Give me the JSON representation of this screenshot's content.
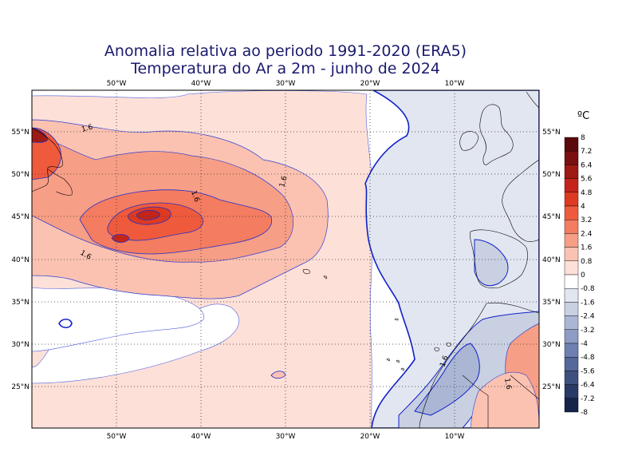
{
  "title_line1": "Anomalia relativa ao periodo 1991-2020 (ERA5)",
  "title_line2": "Temperatura do Ar a 2m - junho de 2024",
  "lon_labels": [
    "50°W",
    "40°W",
    "30°W",
    "20°W",
    "10°W"
  ],
  "lat_labels": [
    "55°N",
    "50°N",
    "45°N",
    "40°N",
    "35°N",
    "30°N",
    "25°N"
  ],
  "contour_label": "1.6",
  "colorbar": {
    "unit": "ºC",
    "levels": [
      "8",
      "7.2",
      "6.4",
      "5.6",
      "4.8",
      "4",
      "3.2",
      "2.4",
      "1.6",
      "0.8",
      "0",
      "-0.8",
      "-1.6",
      "-2.4",
      "-3.2",
      "-4",
      "-4.8",
      "-5.6",
      "-6.4",
      "-7.2",
      "-8"
    ],
    "colors": [
      "#5a0a0a",
      "#7a1010",
      "#9e1a14",
      "#c4241a",
      "#de3a22",
      "#ef5a3c",
      "#f47c60",
      "#f79e86",
      "#fbc2b2",
      "#fde0d8",
      "#ffffff",
      "#e2e6f0",
      "#c8d0e2",
      "#aab6d4",
      "#8c9cc4",
      "#6e80b2",
      "#56689a",
      "#3e5080",
      "#283a66",
      "#16244a",
      "#080c20"
    ]
  },
  "colors": {
    "title": "#1a1a6e",
    "contour_line": "#1020c8",
    "land_line": "#000000"
  }
}
